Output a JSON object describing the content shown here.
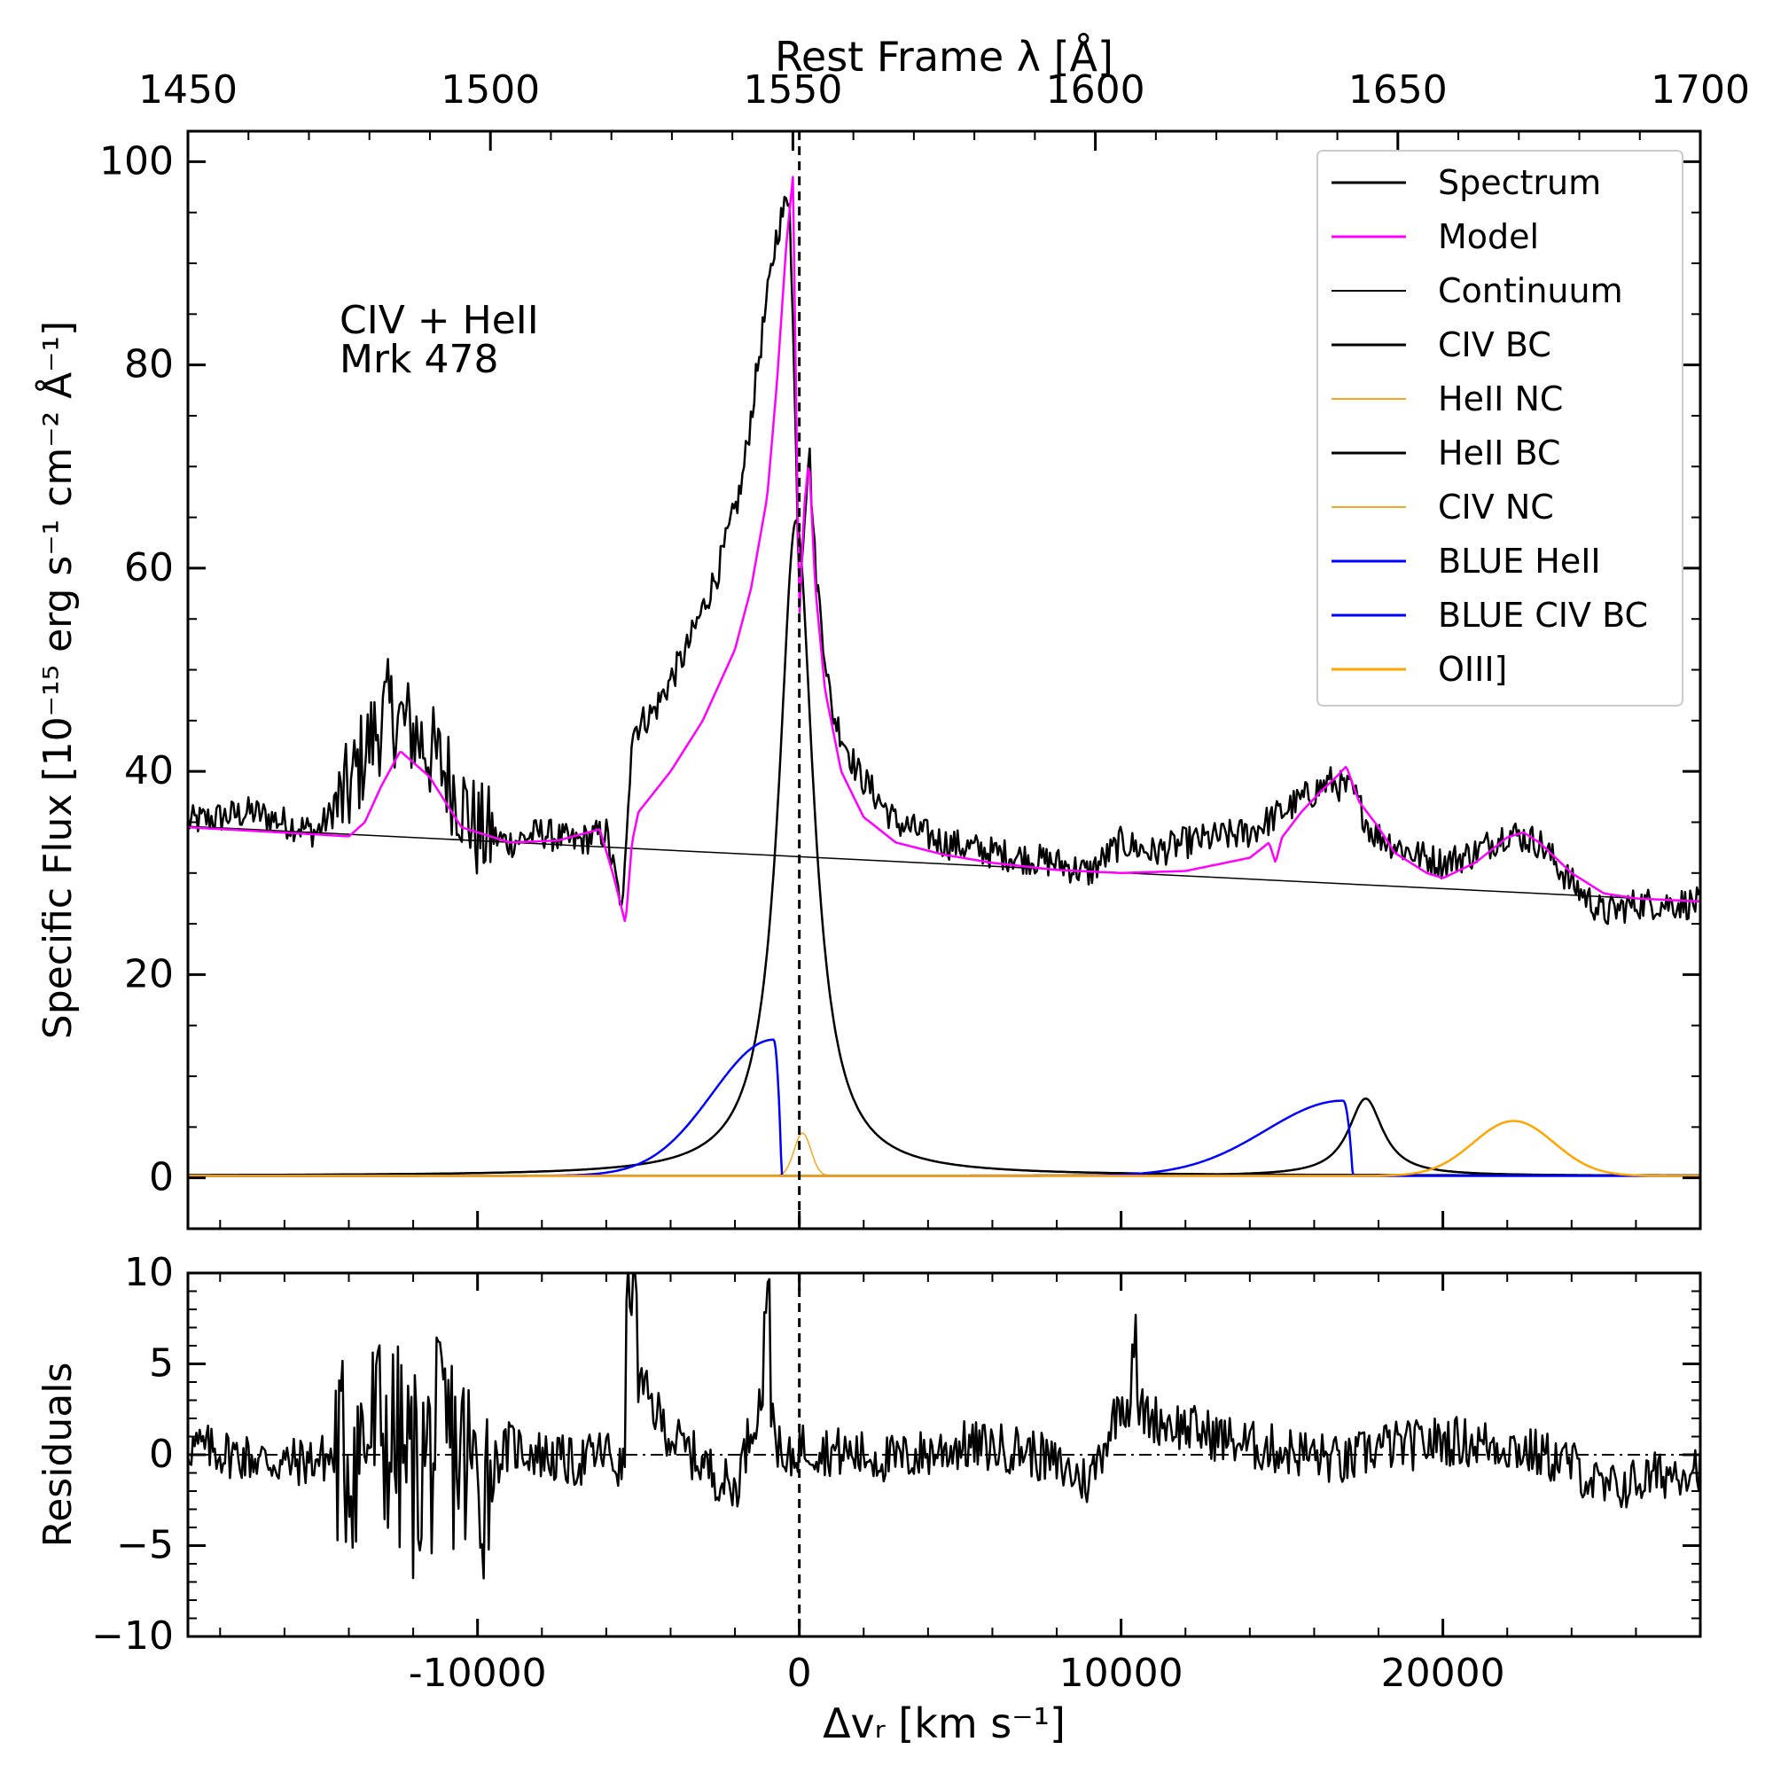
{
  "chart_data": [
    {
      "type": "line",
      "panel": "main",
      "title": "",
      "annotation": [
        "CIV + HeII",
        "Mrk 478"
      ],
      "top_xlabel": "Rest Frame λ [Å]",
      "top_xticks": [
        "1450",
        "1500",
        "1550",
        "1600",
        "1650",
        "1700"
      ],
      "top_xtick_values": [
        1450,
        1500,
        1550,
        1600,
        1650,
        1700
      ],
      "ylabel": "Specific Flux [10⁻¹⁵ erg s⁻¹ cm⁻² Å⁻¹]",
      "ylim": [
        -5,
        103
      ],
      "yticks": [
        "0",
        "20",
        "40",
        "60",
        "80",
        "100"
      ],
      "ytick_values": [
        0,
        20,
        40,
        60,
        80,
        100
      ],
      "xlim": [
        -19000,
        28000
      ],
      "legend_position": "top-right",
      "series": [
        {
          "name": "Spectrum",
          "color": "#000000",
          "width": 2.5,
          "x": [
            -19000,
            -17000,
            -15000,
            -14000,
            -13500,
            -12800,
            -12000,
            -11000,
            -10000,
            -9000,
            -8000,
            -7000,
            -6000,
            -5500,
            -5200,
            -4500,
            -3500,
            -2500,
            -1800,
            -1200,
            -700,
            -300,
            0,
            300,
            500,
            1000,
            1800,
            3000,
            4500,
            6000,
            8000,
            9000,
            10000,
            11000,
            12000,
            14000,
            15500,
            16500,
            17200,
            17800,
            19000,
            20000,
            21000,
            22000,
            23000,
            24000,
            25000,
            26000,
            27000,
            28000
          ],
          "y": [
            35,
            36,
            34,
            38,
            42,
            46,
            44,
            40,
            34,
            33,
            34,
            33,
            34,
            26,
            44,
            46,
            52,
            60,
            68,
            82,
            93,
            97,
            58,
            72,
            60,
            46,
            40,
            35,
            33,
            32,
            31,
            30,
            33,
            32,
            33,
            34,
            37,
            39,
            38,
            34,
            32,
            31,
            32,
            34,
            33,
            29,
            26,
            27,
            27,
            27
          ],
          "noise": 1.6
        },
        {
          "name": "Model",
          "color": "#ff00ff",
          "width": 2.5,
          "x": [
            -19000,
            -15000,
            -14000,
            -13500,
            -13000,
            -12400,
            -11500,
            -10500,
            -9000,
            -7500,
            -6200,
            -5800,
            -5400,
            -5200,
            -5000,
            -4000,
            -3000,
            -2000,
            -1500,
            -1000,
            -700,
            -400,
            -200,
            0,
            150,
            300,
            500,
            800,
            1300,
            2000,
            3000,
            4500,
            6000,
            8000,
            10000,
            12000,
            14000,
            14600,
            14800,
            15000,
            15600,
            16200,
            16700,
            17000,
            17400,
            18000,
            18500,
            19500,
            20000,
            21000,
            22000,
            22500,
            23000,
            24000,
            25000,
            26000,
            28000
          ],
          "y": [
            34.5,
            33.8,
            33.6,
            35,
            38.5,
            42,
            39.5,
            34.5,
            33,
            33.2,
            34.3,
            30,
            25,
            33,
            36,
            40,
            45,
            52,
            58,
            67,
            78,
            92,
            98.5,
            55,
            66,
            70.8,
            58,
            48,
            40,
            35.5,
            33,
            31.8,
            31,
            30.3,
            30,
            30.2,
            31.5,
            33,
            31,
            33.5,
            36,
            38,
            39.5,
            40.5,
            37,
            34.5,
            32,
            30,
            29.5,
            31,
            33.5,
            34,
            33,
            30,
            28,
            27.5,
            27.2
          ]
        },
        {
          "name": "Continuum",
          "color": "#000000",
          "width": 1.5,
          "x": [
            -19000,
            28000
          ],
          "y": [
            34.6,
            27.2
          ]
        },
        {
          "name": "CIV BC",
          "color": "#000000",
          "width": 2.5,
          "func": "lorentz",
          "center": -100,
          "amp": 64.5,
          "hwhm": 650,
          "base": 0.2,
          "xrange": [
            -19000,
            28000
          ]
        },
        {
          "name": "HeII NC",
          "color": "#f5a623",
          "width": 1.5,
          "func": "gauss",
          "center": 100,
          "amp": 4.2,
          "sigma": 260,
          "base": 0.2,
          "xrange": [
            -19000,
            28000
          ]
        },
        {
          "name": "HeII BC",
          "color": "#000000",
          "width": 2.5,
          "func": "lorentz",
          "center": 17600,
          "amp": 7.6,
          "hwhm": 650,
          "base": 0.2,
          "xrange": [
            -19000,
            28000
          ]
        },
        {
          "name": "CIV NC",
          "color": "#f5a623",
          "width": 1.5,
          "func": "flat",
          "base": 0.2,
          "xrange": [
            -19000,
            28000
          ]
        },
        {
          "name": "BLUE HeII",
          "color": "#0000ff",
          "width": 2.5,
          "func": "skew",
          "peak_x": -800,
          "amp": 13.4,
          "width_param": 1900,
          "drop": 250,
          "base": 0.2,
          "xrange": [
            -19000,
            28000
          ]
        },
        {
          "name": "BLUE CIV BC",
          "color": "#0000ff",
          "width": 2.5,
          "func": "skew",
          "peak_x": 16900,
          "amp": 7.4,
          "width_param": 2400,
          "drop": 300,
          "base": 0.2,
          "xrange": [
            -19000,
            28000
          ]
        },
        {
          "name": "OIII]",
          "color": "#ffa500",
          "width": 2.5,
          "func": "gauss",
          "center": 22200,
          "amp": 5.4,
          "sigma": 1250,
          "base": 0.2,
          "xrange": [
            -19000,
            28000
          ]
        }
      ]
    },
    {
      "type": "line",
      "panel": "residuals",
      "xlabel": "Δvᵣ [km s⁻¹]",
      "ylabel": "Residuals",
      "ylim": [
        -10,
        10
      ],
      "yticks": [
        "10",
        "5",
        "0",
        "−5",
        "−10"
      ],
      "ytick_values": [
        10,
        5,
        0,
        -5,
        -10
      ],
      "xlim": [
        -19000,
        28000
      ],
      "xticks": [
        "-10000",
        "0",
        "10000",
        "20000"
      ],
      "xtick_values": [
        -10000,
        0,
        10000,
        20000
      ],
      "series": [
        {
          "name": "Residuals",
          "color": "#000000",
          "width": 2.5,
          "x": [
            -19000,
            -16000,
            -14000,
            -13000,
            -12000,
            -11000,
            -10000,
            -9000,
            -8000,
            -7000,
            -6000,
            -5500,
            -5000,
            -4000,
            -3000,
            -2000,
            -1500,
            -1000,
            -500,
            0,
            1000,
            3000,
            5000,
            7000,
            9000,
            10000,
            11000,
            12000,
            14000,
            16000,
            17000,
            18000,
            19000,
            20000,
            22000,
            24000,
            25000,
            26000,
            28000
          ],
          "y": [
            0.5,
            -0.5,
            0,
            1.5,
            -1,
            1,
            -1.5,
            0.5,
            0,
            -0.5,
            0.2,
            -1,
            4,
            1,
            -0.5,
            -2,
            1.5,
            4,
            -1,
            0.5,
            0.2,
            -0.3,
            0.5,
            0.3,
            -1.5,
            3,
            2,
            1.5,
            0.5,
            0,
            -0.5,
            0.5,
            0.5,
            0.8,
            0.5,
            -0.5,
            -2,
            -1.5,
            -0.5
          ],
          "noise": 1.4,
          "big_noise_range": [
            -14500,
            -9500
          ],
          "big_noise": 6
        }
      ],
      "zero_line": {
        "style": "dashdot",
        "value": 0
      }
    }
  ],
  "legend": [
    {
      "label": "Spectrum",
      "color": "#000000",
      "width": 2.5
    },
    {
      "label": "Model",
      "color": "#ff00ff",
      "width": 2.5
    },
    {
      "label": "Continuum",
      "color": "#000000",
      "width": 1.5
    },
    {
      "label": "CIV BC",
      "color": "#000000",
      "width": 2.5
    },
    {
      "label": "HeII NC",
      "color": "#f5a623",
      "width": 1.5
    },
    {
      "label": "HeII BC",
      "color": "#000000",
      "width": 2.5
    },
    {
      "label": "CIV NC",
      "color": "#f5a623",
      "width": 1.5
    },
    {
      "label": "BLUE HeII",
      "color": "#0000ff",
      "width": 2.5
    },
    {
      "label": "BLUE CIV BC",
      "color": "#0000ff",
      "width": 2.5
    },
    {
      "label": "OIII]",
      "color": "#ffa500",
      "width": 2.5
    }
  ],
  "reference_line": {
    "x": 0,
    "style": "dashed"
  }
}
